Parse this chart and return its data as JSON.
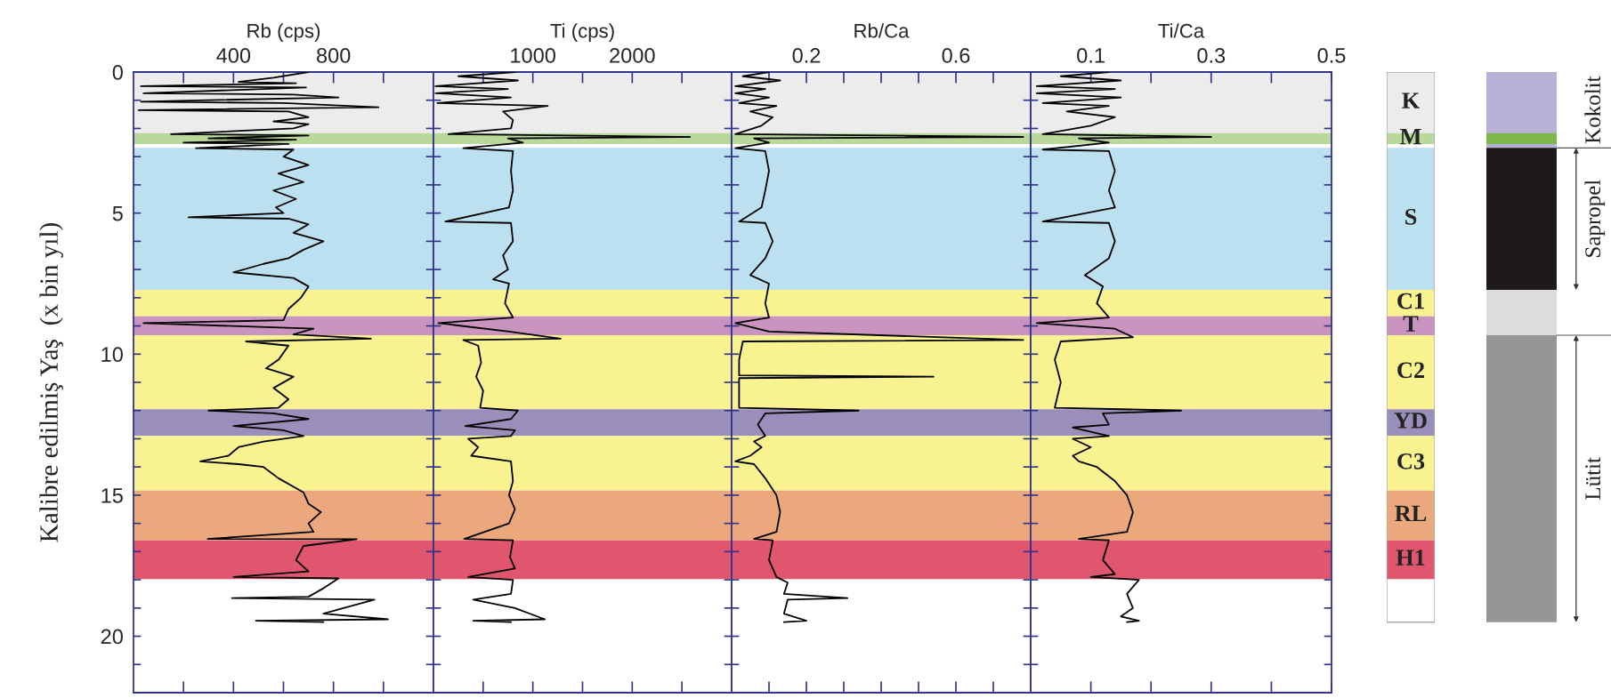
{
  "chart_data": [
    {
      "type": "line",
      "xlabel": "Rb (cps)",
      "ylabel": "Kalibre edilmiş Yaş  (x bin yıl)",
      "xlim": [
        0,
        1200
      ],
      "ylim": [
        22,
        0
      ],
      "xticks": [
        {
          "value": 200,
          "label": null
        },
        400,
        {
          "value": 600,
          "label": null
        },
        800,
        {
          "value": 1000,
          "label": null
        }
      ],
      "yticks": [
        0,
        {
          "value": 1,
          "label": null
        },
        {
          "value": 2,
          "label": null
        },
        {
          "value": 3,
          "label": null
        },
        {
          "value": 4,
          "label": null
        },
        5,
        {
          "value": 6,
          "label": null
        },
        {
          "value": 7,
          "label": null
        },
        {
          "value": 8,
          "label": null
        },
        {
          "value": 9,
          "label": null
        },
        10,
        {
          "value": 11,
          "label": null
        },
        {
          "value": 12,
          "label": null
        },
        {
          "value": 13,
          "label": null
        },
        {
          "value": 14,
          "label": null
        },
        15,
        {
          "value": 16,
          "label": null
        },
        {
          "value": 17,
          "label": null
        },
        {
          "value": 18,
          "label": null
        },
        {
          "value": 19,
          "label": null
        },
        20,
        {
          "value": 21,
          "label": null
        }
      ],
      "bands": [
        {
          "axis": "y",
          "from": 0,
          "to": 2.17,
          "color": "#ececec"
        },
        {
          "axis": "y",
          "from": 2.17,
          "to": 2.55,
          "color": "#b9d89a"
        },
        {
          "axis": "y",
          "from": 2.69,
          "to": 7.72,
          "color": "#bde0f0"
        },
        {
          "axis": "y",
          "from": 7.72,
          "to": 8.66,
          "color": "#f8f291"
        },
        {
          "axis": "y",
          "from": 8.66,
          "to": 9.33,
          "color": "#c994c0"
        },
        {
          "axis": "y",
          "from": 9.33,
          "to": 11.95,
          "color": "#f8f291"
        },
        {
          "axis": "y",
          "from": 11.95,
          "to": 12.9,
          "color": "#9a8fbb"
        },
        {
          "axis": "y",
          "from": 12.9,
          "to": 14.84,
          "color": "#f8f291"
        },
        {
          "axis": "y",
          "from": 14.84,
          "to": 16.6,
          "color": "#eba87c"
        },
        {
          "axis": "y",
          "from": 16.6,
          "to": 17.97,
          "color": "#e0566f"
        }
      ],
      "series": [
        {
          "color": "#000000",
          "x": [
            700,
            560,
            420,
            650,
            30,
            690,
            40,
            640,
            820,
            30,
            600,
            980,
            20,
            620,
            700,
            560,
            700,
            640,
            150,
            700,
            300,
            650,
            200,
            620,
            250,
            640,
            600,
            700,
            580,
            680,
            560,
            650,
            570,
            600,
            220,
            620,
            700,
            640,
            760,
            680,
            620,
            520,
            400,
            640,
            700,
            670,
            620,
            600,
            40,
            720,
            640,
            950,
            450,
            620,
            580,
            530,
            640,
            560,
            620,
            580,
            300,
            560,
            700,
            400,
            600,
            680,
            520,
            420,
            380,
            267,
            420,
            520,
            580,
            680,
            700,
            750,
            700,
            720,
            297,
            893,
            680,
            650,
            700,
            400,
            820,
            760,
            700,
            394,
            964,
            840,
            760,
            1018,
            490,
            760
          ],
          "values": [
            0.0,
            0.2,
            0.35,
            0.4,
            0.5,
            0.55,
            0.75,
            0.8,
            0.9,
            1.05,
            1.1,
            1.25,
            1.35,
            1.4,
            1.6,
            1.75,
            1.85,
            2.0,
            2.2,
            2.25,
            2.35,
            2.4,
            2.5,
            2.55,
            2.7,
            2.75,
            3.0,
            3.3,
            3.6,
            3.9,
            4.2,
            4.5,
            4.8,
            5.0,
            5.15,
            5.2,
            5.4,
            5.7,
            6.0,
            6.3,
            6.6,
            6.8,
            7.1,
            7.3,
            7.6,
            8.0,
            8.4,
            8.8,
            8.9,
            9.1,
            9.3,
            9.45,
            9.55,
            9.7,
            10.2,
            10.5,
            10.8,
            11.2,
            11.6,
            11.9,
            12.0,
            12.1,
            12.3,
            12.55,
            12.7,
            12.9,
            13.1,
            13.3,
            13.6,
            13.8,
            13.9,
            14.0,
            14.4,
            14.9,
            15.3,
            15.6,
            16.0,
            16.3,
            16.55,
            16.56,
            16.8,
            17.3,
            17.7,
            17.9,
            17.95,
            18.3,
            18.6,
            18.65,
            18.7,
            19.0,
            19.2,
            19.4,
            19.45,
            19.5
          ]
        }
      ]
    },
    {
      "type": "line",
      "xlabel": "Ti (cps)",
      "xlim": [
        0,
        3000
      ],
      "ylim": [
        22,
        0
      ],
      "tick_labels": "x",
      "xticks": [
        {
          "value": 500,
          "label": null
        },
        1000,
        {
          "value": 1500,
          "label": null
        },
        2000,
        {
          "value": 2500,
          "label": null
        }
      ],
      "yticks": [
        0,
        1,
        2,
        3,
        4,
        5,
        6,
        7,
        8,
        9,
        10,
        11,
        12,
        13,
        14,
        15,
        16,
        17,
        18,
        19,
        20,
        21
      ],
      "bands": [
        {
          "axis": "y",
          "from": 0,
          "to": 2.17,
          "color": "#ececec"
        },
        {
          "axis": "y",
          "from": 2.17,
          "to": 2.55,
          "color": "#b9d89a"
        },
        {
          "axis": "y",
          "from": 2.69,
          "to": 7.72,
          "color": "#bde0f0"
        },
        {
          "axis": "y",
          "from": 7.72,
          "to": 8.66,
          "color": "#f8f291"
        },
        {
          "axis": "y",
          "from": 8.66,
          "to": 9.33,
          "color": "#c994c0"
        },
        {
          "axis": "y",
          "from": 9.33,
          "to": 11.95,
          "color": "#f8f291"
        },
        {
          "axis": "y",
          "from": 11.95,
          "to": 12.9,
          "color": "#9a8fbb"
        },
        {
          "axis": "y",
          "from": 12.9,
          "to": 14.84,
          "color": "#f8f291"
        },
        {
          "axis": "y",
          "from": 14.84,
          "to": 16.6,
          "color": "#eba87c"
        },
        {
          "axis": "y",
          "from": 16.6,
          "to": 17.97,
          "color": "#e0566f"
        }
      ],
      "series": [
        {
          "color": "#000000",
          "x": [
            820,
            250,
            850,
            20,
            750,
            20,
            780,
            40,
            1150,
            700,
            800,
            780,
            150,
            2580,
            750,
            900,
            300,
            800,
            780,
            800,
            760,
            120,
            780,
            800,
            700,
            750,
            600,
            760,
            720,
            800,
            50,
            760,
            1280,
            300,
            450,
            480,
            430,
            500,
            470,
            850,
            780,
            320,
            820,
            780,
            350,
            450,
            380,
            780,
            800,
            760,
            820,
            760,
            310,
            800,
            770,
            820,
            350,
            800,
            780,
            400,
            820,
            1120,
            400,
            780
          ],
          "values": [
            0,
            0.15,
            0.3,
            0.5,
            0.6,
            0.75,
            0.9,
            1.1,
            1.2,
            1.4,
            1.7,
            2.0,
            2.2,
            2.3,
            2.35,
            2.5,
            2.7,
            2.8,
            3.5,
            4.2,
            4.8,
            5.3,
            5.35,
            6.0,
            6.5,
            7.0,
            7.35,
            7.5,
            8.2,
            8.7,
            8.9,
            9.2,
            9.45,
            9.5,
            9.7,
            10.3,
            10.8,
            11.3,
            11.9,
            12.0,
            12.3,
            12.55,
            12.7,
            12.9,
            13.0,
            13.3,
            13.6,
            13.8,
            14.5,
            15.0,
            15.5,
            16.0,
            16.55,
            16.6,
            17.2,
            17.6,
            17.9,
            18.0,
            18.5,
            18.7,
            19.0,
            19.4,
            19.45,
            19.5
          ]
        }
      ]
    },
    {
      "type": "line",
      "xlabel": "Rb/Ca",
      "xlim": [
        0,
        0.8
      ],
      "ylim": [
        22,
        0
      ],
      "tick_labels": "x",
      "xticks": [
        {
          "value": 0.1,
          "label": null
        },
        0.2,
        {
          "value": 0.3,
          "label": null
        },
        {
          "value": 0.4,
          "label": null
        },
        {
          "value": 0.5,
          "label": null
        },
        0.6,
        {
          "value": 0.7,
          "label": null
        }
      ],
      "yticks": [
        0,
        1,
        2,
        3,
        4,
        5,
        6,
        7,
        8,
        9,
        10,
        11,
        12,
        13,
        14,
        15,
        16,
        17,
        18,
        19,
        20,
        21
      ],
      "bands": [
        {
          "axis": "y",
          "from": 0,
          "to": 2.17,
          "color": "#ececec"
        },
        {
          "axis": "y",
          "from": 2.17,
          "to": 2.55,
          "color": "#b9d89a"
        },
        {
          "axis": "y",
          "from": 2.69,
          "to": 7.72,
          "color": "#bde0f0"
        },
        {
          "axis": "y",
          "from": 7.72,
          "to": 8.66,
          "color": "#f8f291"
        },
        {
          "axis": "y",
          "from": 8.66,
          "to": 9.33,
          "color": "#c994c0"
        },
        {
          "axis": "y",
          "from": 9.33,
          "to": 11.95,
          "color": "#f8f291"
        },
        {
          "axis": "y",
          "from": 11.95,
          "to": 12.9,
          "color": "#9a8fbb"
        },
        {
          "axis": "y",
          "from": 12.9,
          "to": 14.84,
          "color": "#f8f291"
        },
        {
          "axis": "y",
          "from": 14.84,
          "to": 16.6,
          "color": "#eba87c"
        },
        {
          "axis": "y",
          "from": 16.6,
          "to": 17.97,
          "color": "#e0566f"
        }
      ],
      "series": [
        {
          "color": "#000000",
          "x": [
            0.1,
            0.03,
            0.13,
            0.01,
            0.09,
            0.01,
            0.1,
            0.02,
            0.12,
            0.05,
            0.11,
            0.08,
            0.01,
            0.78,
            0.06,
            0.1,
            0.01,
            0.09,
            0.1,
            0.09,
            0.08,
            0.02,
            0.09,
            0.11,
            0.09,
            0.05,
            0.1,
            0.09,
            0.1,
            0.01,
            0.1,
            0.78,
            0.03,
            0.02,
            0.02,
            0.54,
            0.02,
            0.02,
            0.34,
            0.09,
            0.07,
            0.09,
            0.06,
            0.08,
            0.05,
            0.01,
            0.06,
            0.09,
            0.12,
            0.13,
            0.12,
            0.06,
            0.11,
            0.1,
            0.12,
            0.15,
            0.14,
            0.31,
            0.15,
            0.14,
            0.2,
            0.14
          ],
          "values": [
            0,
            0.15,
            0.3,
            0.5,
            0.6,
            0.75,
            0.9,
            1.1,
            1.2,
            1.4,
            1.6,
            1.9,
            2.2,
            2.3,
            2.35,
            2.5,
            2.7,
            2.8,
            3.5,
            4.2,
            4.8,
            5.3,
            5.35,
            6.0,
            6.6,
            7.2,
            7.5,
            8.2,
            8.7,
            8.9,
            9.2,
            9.5,
            9.55,
            10.2,
            10.75,
            10.8,
            10.85,
            11.9,
            12.0,
            12.1,
            12.5,
            12.9,
            13.1,
            13.3,
            13.6,
            13.8,
            13.9,
            14.4,
            15.0,
            15.6,
            16.3,
            16.55,
            16.6,
            17.3,
            17.9,
            18.1,
            18.5,
            18.65,
            18.7,
            19.2,
            19.45,
            19.5
          ]
        }
      ]
    },
    {
      "type": "line",
      "xlabel": "Ti/Ca",
      "xlim": [
        0,
        0.5
      ],
      "ylim": [
        22,
        0
      ],
      "tick_labels": "x",
      "xticks": [
        0.1,
        {
          "value": 0.2,
          "label": null
        },
        0.3,
        {
          "value": 0.4,
          "label": null
        },
        0.5
      ],
      "yticks": [
        0,
        1,
        2,
        3,
        4,
        5,
        6,
        7,
        8,
        9,
        10,
        11,
        12,
        13,
        14,
        15,
        16,
        17,
        18,
        19,
        20,
        21
      ],
      "bands": [
        {
          "axis": "y",
          "from": 0,
          "to": 2.17,
          "color": "#ececec"
        },
        {
          "axis": "y",
          "from": 2.17,
          "to": 2.55,
          "color": "#b9d89a"
        },
        {
          "axis": "y",
          "from": 2.69,
          "to": 7.72,
          "color": "#bde0f0"
        },
        {
          "axis": "y",
          "from": 7.72,
          "to": 8.66,
          "color": "#f8f291"
        },
        {
          "axis": "y",
          "from": 8.66,
          "to": 9.33,
          "color": "#c994c0"
        },
        {
          "axis": "y",
          "from": 9.33,
          "to": 11.95,
          "color": "#f8f291"
        },
        {
          "axis": "y",
          "from": 11.95,
          "to": 12.9,
          "color": "#9a8fbb"
        },
        {
          "axis": "y",
          "from": 12.9,
          "to": 14.84,
          "color": "#f8f291"
        },
        {
          "axis": "y",
          "from": 14.84,
          "to": 16.6,
          "color": "#eba87c"
        },
        {
          "axis": "y",
          "from": 16.6,
          "to": 17.97,
          "color": "#e0566f"
        }
      ],
      "series": [
        {
          "color": "#000000",
          "x": [
            0.13,
            0.05,
            0.15,
            0.01,
            0.14,
            0.01,
            0.15,
            0.02,
            0.13,
            0.06,
            0.14,
            0.1,
            0.02,
            0.3,
            0.08,
            0.13,
            0.02,
            0.13,
            0.14,
            0.13,
            0.14,
            0.02,
            0.13,
            0.14,
            0.13,
            0.09,
            0.12,
            0.11,
            0.13,
            0.01,
            0.14,
            0.17,
            0.05,
            0.04,
            0.05,
            0.04,
            0.25,
            0.12,
            0.13,
            0.07,
            0.13,
            0.07,
            0.1,
            0.07,
            0.08,
            0.11,
            0.14,
            0.16,
            0.17,
            0.16,
            0.08,
            0.13,
            0.12,
            0.14,
            0.1,
            0.18,
            0.16,
            0.17,
            0.15,
            0.18,
            0.16
          ],
          "values": [
            0,
            0.15,
            0.3,
            0.5,
            0.6,
            0.75,
            0.9,
            1.1,
            1.2,
            1.4,
            1.6,
            1.9,
            2.2,
            2.3,
            2.35,
            2.5,
            2.75,
            2.8,
            3.5,
            4.2,
            4.8,
            5.3,
            5.35,
            6.0,
            6.6,
            7.2,
            7.6,
            8.2,
            8.7,
            8.9,
            9.1,
            9.4,
            9.55,
            10.2,
            11.0,
            11.9,
            12.0,
            12.1,
            12.5,
            12.6,
            12.9,
            13.0,
            13.3,
            13.6,
            13.8,
            14.0,
            14.5,
            15.0,
            15.6,
            16.3,
            16.55,
            16.6,
            17.3,
            17.8,
            17.9,
            18.0,
            18.5,
            19.0,
            19.3,
            19.45,
            19.5
          ]
        }
      ]
    },
    {
      "type": "other",
      "annotations": [
        "K",
        "M",
        "S",
        "C1",
        "T",
        "C2",
        "YD",
        "C3",
        "RL",
        "H1"
      ]
    },
    {
      "type": "other",
      "annotations": [
        "Kokolit",
        "Sapropel",
        "Lütit"
      ],
      "colors": [
        "#b7b1d8",
        "#7cb84a",
        "#1e1a1a",
        "#dcdcdc",
        "#959595"
      ]
    }
  ]
}
